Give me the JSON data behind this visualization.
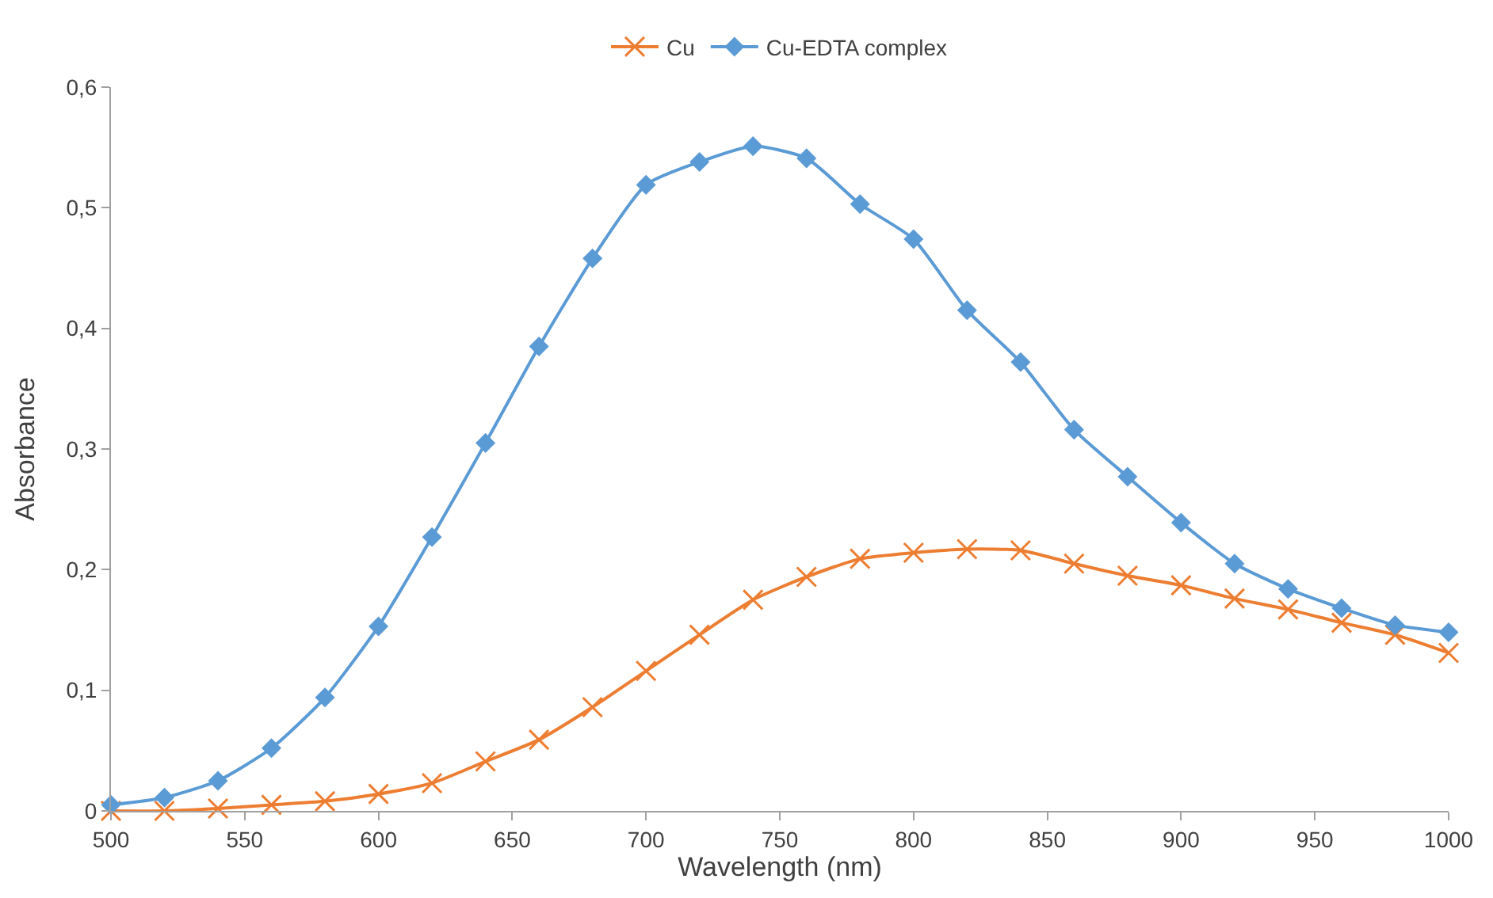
{
  "chart_data": {
    "type": "line",
    "xlabel": "Wavelength (nm)",
    "ylabel": "Absorbance",
    "x": [
      500,
      520,
      540,
      560,
      580,
      600,
      620,
      640,
      660,
      680,
      700,
      720,
      740,
      760,
      780,
      800,
      820,
      840,
      860,
      880,
      900,
      920,
      940,
      960,
      980,
      1000
    ],
    "series": [
      {
        "name": "Cu",
        "color": "#ed7d31",
        "marker": "cross",
        "values": [
          0.0,
          0.0,
          0.002,
          0.005,
          0.008,
          0.014,
          0.023,
          0.041,
          0.059,
          0.086,
          0.116,
          0.146,
          0.175,
          0.194,
          0.209,
          0.214,
          0.217,
          0.216,
          0.205,
          0.195,
          0.187,
          0.176,
          0.167,
          0.156,
          0.146,
          0.131
        ]
      },
      {
        "name": "Cu-EDTA complex",
        "color": "#5b9bd5",
        "marker": "diamond",
        "values": [
          0.005,
          0.011,
          0.025,
          0.052,
          0.094,
          0.153,
          0.227,
          0.305,
          0.385,
          0.458,
          0.519,
          0.538,
          0.551,
          0.541,
          0.503,
          0.474,
          0.415,
          0.372,
          0.316,
          0.277,
          0.239,
          0.205,
          0.184,
          0.168,
          0.154,
          0.148
        ]
      }
    ],
    "xlim": [
      500,
      1000
    ],
    "xticks": [
      500,
      550,
      600,
      650,
      700,
      750,
      800,
      850,
      900,
      950,
      1000
    ],
    "ylim": [
      0,
      0.6
    ],
    "yticks": [
      0,
      {
        "value": 0.1,
        "label": "0,1"
      },
      {
        "value": 0.2,
        "label": "0,2"
      },
      {
        "value": 0.3,
        "label": "0,3"
      },
      {
        "value": 0.4,
        "label": "0,4"
      },
      {
        "value": 0.5,
        "label": "0,5"
      },
      {
        "value": 0.6,
        "label": "0,6"
      }
    ],
    "legend": "top",
    "line_style": "solid"
  }
}
